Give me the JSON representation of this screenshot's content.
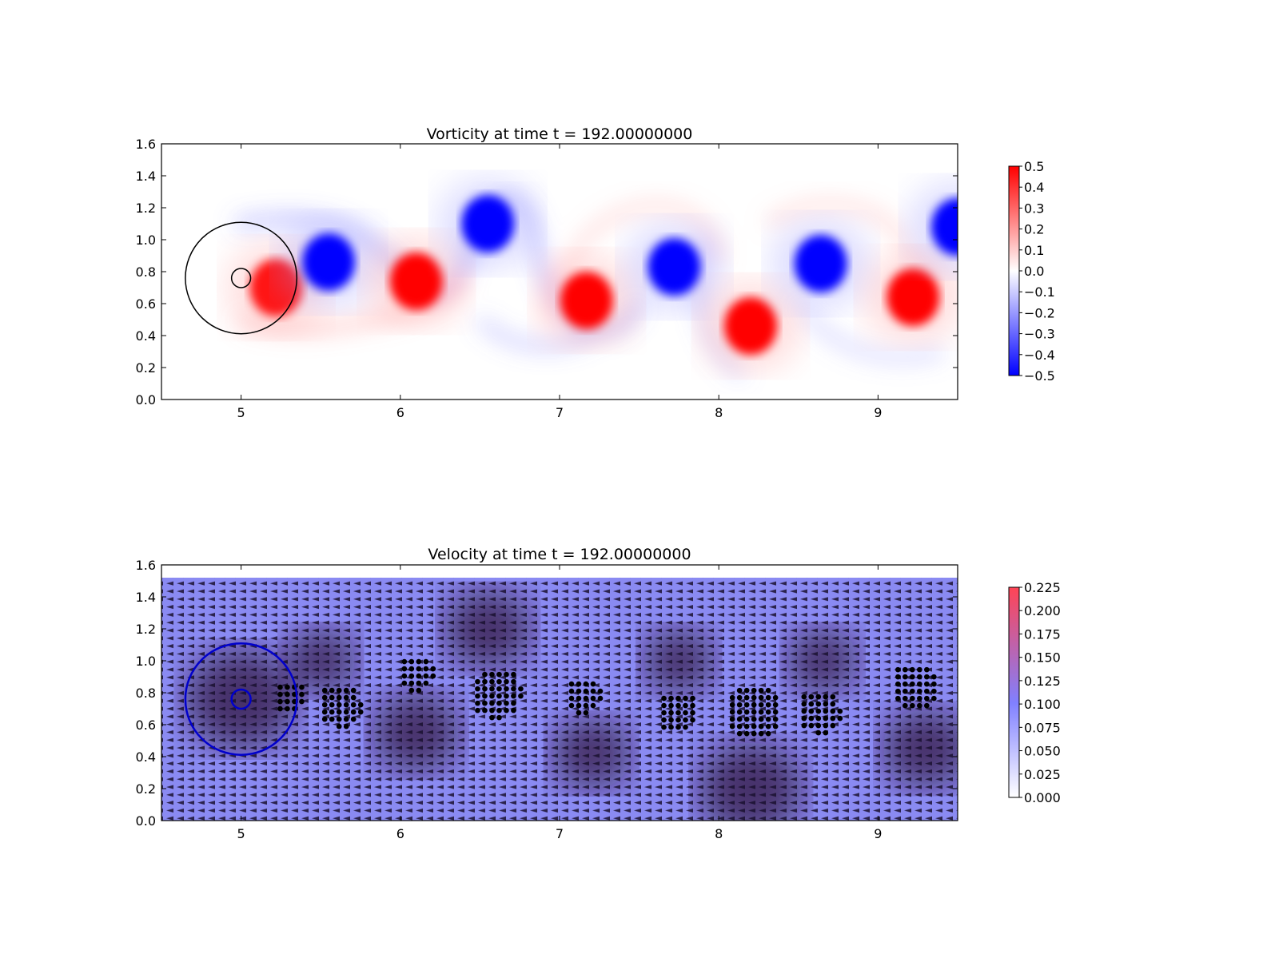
{
  "chart_data": [
    {
      "type": "heatmap",
      "title": "Vorticity at time t =   192.00000000",
      "xlim": [
        4.5,
        9.5
      ],
      "ylim": [
        0.0,
        1.6
      ],
      "x_ticks": [
        "5",
        "6",
        "7",
        "8",
        "9"
      ],
      "y_ticks": [
        "0.0",
        "0.2",
        "0.4",
        "0.6",
        "0.8",
        "1.0",
        "1.2",
        "1.4",
        "1.6"
      ],
      "colorbar": {
        "min": -0.5,
        "max": 0.5,
        "ticks": [
          "0.5",
          "0.4",
          "0.3",
          "0.2",
          "0.1",
          "0.0",
          "−0.1",
          "−0.2",
          "−0.3",
          "−0.4",
          "−0.5"
        ],
        "colors": [
          "#0000ff",
          "#ffffff",
          "#ff0000"
        ]
      },
      "circles": [
        {
          "cx": 5.0,
          "cy": 0.76,
          "r": 0.35,
          "color": "#000000"
        },
        {
          "cx": 5.0,
          "cy": 0.76,
          "r": 0.06,
          "color": "#000000"
        }
      ],
      "vortices": [
        {
          "x": 5.22,
          "y": 0.7,
          "value": 0.45
        },
        {
          "x": 5.55,
          "y": 0.86,
          "value": -0.5
        },
        {
          "x": 6.1,
          "y": 0.74,
          "value": 0.5
        },
        {
          "x": 6.55,
          "y": 1.1,
          "value": -0.5
        },
        {
          "x": 7.17,
          "y": 0.62,
          "value": 0.5
        },
        {
          "x": 7.72,
          "y": 0.83,
          "value": -0.5
        },
        {
          "x": 8.2,
          "y": 0.46,
          "value": 0.5
        },
        {
          "x": 8.64,
          "y": 0.85,
          "value": -0.5
        },
        {
          "x": 9.22,
          "y": 0.64,
          "value": 0.5
        },
        {
          "x": 9.5,
          "y": 1.08,
          "value": -0.5
        }
      ]
    },
    {
      "type": "heatmap",
      "title": "Velocity at time t =   192.00000000",
      "xlim": [
        4.5,
        9.5
      ],
      "ylim": [
        0.0,
        1.6
      ],
      "x_ticks": [
        "5",
        "6",
        "7",
        "8",
        "9"
      ],
      "y_ticks": [
        "0.0",
        "0.2",
        "0.4",
        "0.6",
        "0.8",
        "1.0",
        "1.2",
        "1.4",
        "1.6"
      ],
      "colorbar": {
        "min": 0.0,
        "max": 0.225,
        "ticks": [
          "0.225",
          "0.200",
          "0.175",
          "0.150",
          "0.125",
          "0.100",
          "0.075",
          "0.050",
          "0.025",
          "0.000"
        ],
        "colors": [
          "#ffffff",
          "#8080ff",
          "#ff4455"
        ]
      },
      "circles": [
        {
          "cx": 5.0,
          "cy": 0.76,
          "r": 0.35,
          "color": "#0000cc"
        },
        {
          "cx": 5.0,
          "cy": 0.76,
          "r": 0.06,
          "color": "#0000cc"
        }
      ],
      "dot_clusters": [
        {
          "x": 5.3,
          "y": 0.78,
          "r": 0.1
        },
        {
          "x": 5.62,
          "y": 0.72,
          "r": 0.14
        },
        {
          "x": 6.1,
          "y": 0.92,
          "r": 0.12
        },
        {
          "x": 6.6,
          "y": 0.8,
          "r": 0.16
        },
        {
          "x": 7.15,
          "y": 0.78,
          "r": 0.12
        },
        {
          "x": 7.74,
          "y": 0.68,
          "r": 0.13
        },
        {
          "x": 8.22,
          "y": 0.68,
          "r": 0.18
        },
        {
          "x": 8.63,
          "y": 0.68,
          "r": 0.14
        },
        {
          "x": 9.23,
          "y": 0.84,
          "r": 0.15
        }
      ]
    }
  ]
}
